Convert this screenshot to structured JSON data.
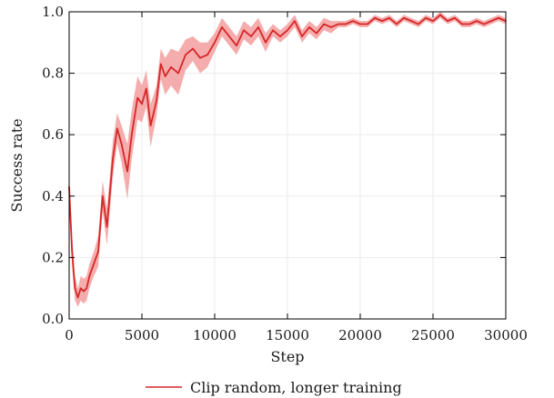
{
  "chart_data": {
    "type": "line",
    "xlabel": "Step",
    "ylabel": "Success rate",
    "xlim": [
      0,
      30000
    ],
    "ylim": [
      0.0,
      1.0
    ],
    "x_ticks": [
      "0",
      "5000",
      "10000",
      "15000",
      "20000",
      "25000",
      "30000"
    ],
    "y_ticks": [
      "0.0",
      "0.2",
      "0.4",
      "0.6",
      "0.8",
      "1.0"
    ],
    "grid": true,
    "legend_position": "below",
    "series": [
      {
        "name": "Clip random, longer training",
        "line_color": "#d62728",
        "band_color": "#f4a3a3",
        "x": [
          0,
          200,
          400,
          600,
          800,
          1000,
          1200,
          1400,
          1700,
          2000,
          2300,
          2600,
          3000,
          3300,
          3600,
          4000,
          4300,
          4700,
          5000,
          5300,
          5600,
          6000,
          6300,
          6600,
          7000,
          7500,
          8000,
          8500,
          9000,
          9500,
          10000,
          10500,
          11000,
          11500,
          12000,
          12500,
          13000,
          13500,
          14000,
          14500,
          15000,
          15500,
          16000,
          16500,
          17000,
          17500,
          18000,
          18500,
          19000,
          19500,
          20000,
          20500,
          21000,
          21500,
          22000,
          22500,
          23000,
          23500,
          24000,
          24500,
          25000,
          25500,
          26000,
          26500,
          27000,
          27500,
          28000,
          28500,
          29000,
          29500,
          30000
        ],
        "y": [
          0.43,
          0.22,
          0.1,
          0.07,
          0.1,
          0.09,
          0.1,
          0.14,
          0.18,
          0.22,
          0.4,
          0.3,
          0.52,
          0.62,
          0.57,
          0.48,
          0.6,
          0.72,
          0.7,
          0.75,
          0.63,
          0.71,
          0.83,
          0.79,
          0.82,
          0.8,
          0.86,
          0.88,
          0.85,
          0.86,
          0.9,
          0.95,
          0.92,
          0.89,
          0.94,
          0.92,
          0.95,
          0.9,
          0.94,
          0.92,
          0.94,
          0.97,
          0.92,
          0.95,
          0.93,
          0.96,
          0.95,
          0.96,
          0.96,
          0.97,
          0.96,
          0.96,
          0.98,
          0.97,
          0.98,
          0.96,
          0.98,
          0.97,
          0.96,
          0.98,
          0.97,
          0.99,
          0.97,
          0.98,
          0.96,
          0.96,
          0.97,
          0.96,
          0.97,
          0.98,
          0.97
        ],
        "band_halfwidth": [
          0.02,
          0.05,
          0.04,
          0.03,
          0.04,
          0.04,
          0.04,
          0.04,
          0.04,
          0.05,
          0.05,
          0.06,
          0.06,
          0.05,
          0.06,
          0.09,
          0.08,
          0.07,
          0.06,
          0.06,
          0.07,
          0.05,
          0.05,
          0.06,
          0.06,
          0.07,
          0.05,
          0.04,
          0.05,
          0.04,
          0.03,
          0.03,
          0.03,
          0.03,
          0.03,
          0.03,
          0.03,
          0.03,
          0.02,
          0.02,
          0.02,
          0.02,
          0.02,
          0.02,
          0.02,
          0.02,
          0.02,
          0.01,
          0.01,
          0.01,
          0.01,
          0.01,
          0.01,
          0.01,
          0.01,
          0.01,
          0.01,
          0.01,
          0.01,
          0.01,
          0.01,
          0.01,
          0.01,
          0.01,
          0.01,
          0.01,
          0.01,
          0.01,
          0.01,
          0.01,
          0.01
        ]
      }
    ]
  }
}
